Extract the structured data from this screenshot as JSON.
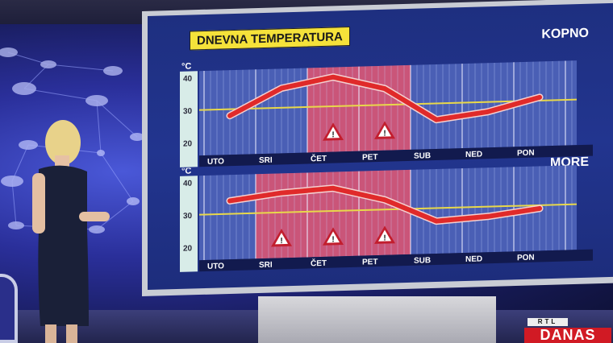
{
  "broadcast": {
    "channel_logo_top": "RTL",
    "channel_logo_bottom": "DANAS"
  },
  "screen": {
    "title": "DNEVNA TEMPERATURA"
  },
  "colors": {
    "title_bg": "#f5e23a",
    "line": "#e02a2a",
    "line_outline": "#f4d0d0",
    "threshold": "#e8d84a",
    "warning_zone": "#e0546f",
    "grid_bg": "#4a5fb5",
    "axis_bg": "#d8ece8",
    "day_bar": "#121a4e"
  },
  "chart_data": [
    {
      "type": "line",
      "title": "KOPNO",
      "ylabel": "°C",
      "yticks": [
        40,
        30,
        20
      ],
      "ylim": [
        16,
        42
      ],
      "categories": [
        "UTO",
        "SRI",
        "ČET",
        "PET",
        "SUB",
        "NED",
        "PON"
      ],
      "values": [
        28,
        36,
        39,
        35,
        25,
        27,
        31
      ],
      "threshold": 30,
      "warning_days": [
        "ČET",
        "PET"
      ],
      "grid": true
    },
    {
      "type": "line",
      "title": "MORE",
      "ylabel": "°C",
      "yticks": [
        40,
        30,
        20
      ],
      "ylim": [
        16,
        42
      ],
      "categories": [
        "UTO",
        "SRI",
        "ČET",
        "PET",
        "SUB",
        "NED",
        "PON"
      ],
      "values": [
        34,
        36,
        37,
        33,
        26,
        27,
        29
      ],
      "threshold": 30,
      "warning_days": [
        "SRI",
        "ČET",
        "PET"
      ],
      "grid": true
    }
  ]
}
